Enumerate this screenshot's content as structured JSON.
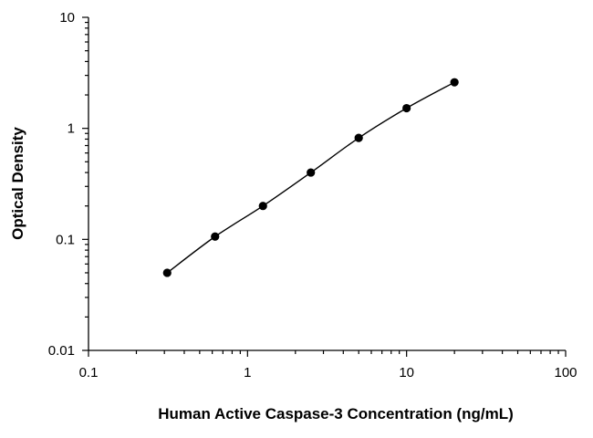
{
  "chart_data": {
    "type": "scatter",
    "title": "",
    "xlabel": "Human Active Caspase-3 Concentration (ng/mL)",
    "ylabel": "Optical Density",
    "x_scale": "log",
    "y_scale": "log",
    "xlim": [
      0.1,
      100
    ],
    "ylim": [
      0.01,
      10
    ],
    "x_ticks": [
      0.1,
      1,
      10,
      100
    ],
    "y_ticks": [
      0.01,
      0.1,
      1,
      10
    ],
    "x_tick_labels": [
      "0.1",
      "1",
      "10",
      "100"
    ],
    "y_tick_labels": [
      "0.01",
      "0.1",
      "1",
      "10"
    ],
    "grid": false,
    "legend": "none",
    "series": [
      {
        "x": [
          0.3125,
          0.625,
          1.25,
          2.5,
          5,
          10,
          20
        ],
        "y": [
          0.05,
          0.106,
          0.2,
          0.4,
          0.82,
          1.52,
          2.6
        ],
        "marker": "filled-circle",
        "fit_line": true
      }
    ],
    "colors": {
      "marker": "#000000",
      "line": "#000000",
      "axis": "#000000"
    }
  }
}
